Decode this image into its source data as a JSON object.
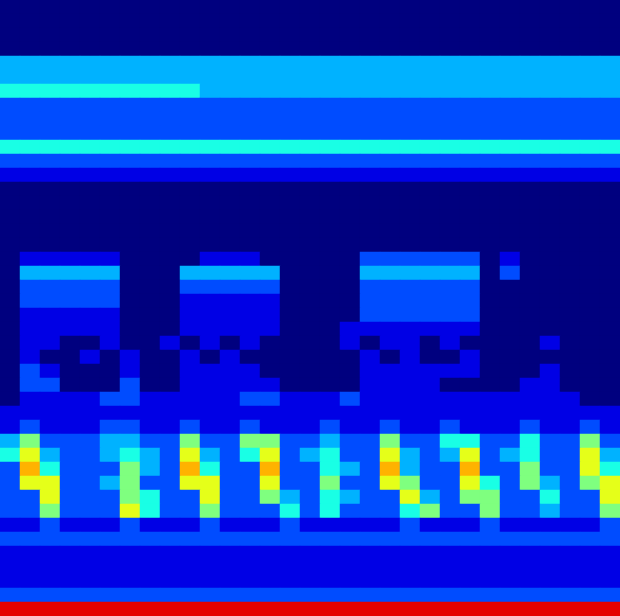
{
  "chart_data": {
    "type": "heatmap",
    "tick_labels": false,
    "color_range": [
      0,
      10
    ],
    "cells": [
      [
        0,
        0,
        0,
        0,
        0,
        0,
        0,
        0,
        0,
        0,
        0,
        0,
        0,
        0,
        0,
        0,
        0,
        0,
        0,
        0,
        0,
        0,
        0,
        0,
        0,
        0,
        0,
        0,
        0,
        0,
        0
      ],
      [
        0,
        0,
        0,
        0,
        0,
        0,
        0,
        0,
        0,
        0,
        0,
        0,
        0,
        0,
        0,
        0,
        0,
        0,
        0,
        0,
        0,
        0,
        0,
        0,
        0,
        0,
        0,
        0,
        0,
        0,
        0
      ],
      [
        0,
        0,
        0,
        0,
        0,
        0,
        0,
        0,
        0,
        0,
        0,
        0,
        0,
        0,
        0,
        0,
        0,
        0,
        0,
        0,
        0,
        0,
        0,
        0,
        0,
        0,
        0,
        0,
        0,
        0,
        0
      ],
      [
        0,
        0,
        0,
        0,
        0,
        0,
        0,
        0,
        0,
        0,
        0,
        0,
        0,
        0,
        0,
        0,
        0,
        0,
        0,
        0,
        0,
        0,
        0,
        0,
        0,
        0,
        0,
        0,
        0,
        0,
        0
      ],
      [
        3,
        3,
        3,
        3,
        3,
        3,
        3,
        3,
        3,
        3,
        3,
        3,
        3,
        3,
        3,
        3,
        3,
        3,
        3,
        3,
        3,
        3,
        3,
        3,
        3,
        3,
        3,
        3,
        3,
        3,
        3
      ],
      [
        3,
        3,
        3,
        3,
        3,
        3,
        3,
        3,
        3,
        3,
        3,
        3,
        3,
        3,
        3,
        3,
        3,
        3,
        3,
        3,
        3,
        3,
        3,
        3,
        3,
        3,
        3,
        3,
        3,
        3,
        3
      ],
      [
        4,
        4,
        4,
        4,
        4,
        4,
        4,
        4,
        4,
        4,
        3,
        3,
        3,
        3,
        3,
        3,
        3,
        3,
        3,
        3,
        3,
        3,
        3,
        3,
        3,
        3,
        3,
        3,
        3,
        3,
        3
      ],
      [
        2,
        2,
        2,
        2,
        2,
        2,
        2,
        2,
        2,
        2,
        2,
        2,
        2,
        2,
        2,
        2,
        2,
        2,
        2,
        2,
        2,
        2,
        2,
        2,
        2,
        2,
        2,
        2,
        2,
        2,
        2
      ],
      [
        2,
        2,
        2,
        2,
        2,
        2,
        2,
        2,
        2,
        2,
        2,
        2,
        2,
        2,
        2,
        2,
        2,
        2,
        2,
        2,
        2,
        2,
        2,
        2,
        2,
        2,
        2,
        2,
        2,
        2,
        2
      ],
      [
        2,
        2,
        2,
        2,
        2,
        2,
        2,
        2,
        2,
        2,
        2,
        2,
        2,
        2,
        2,
        2,
        2,
        2,
        2,
        2,
        2,
        2,
        2,
        2,
        2,
        2,
        2,
        2,
        2,
        2,
        2
      ],
      [
        4,
        4,
        4,
        4,
        4,
        4,
        4,
        4,
        4,
        4,
        4,
        4,
        4,
        4,
        4,
        4,
        4,
        4,
        4,
        4,
        4,
        4,
        4,
        4,
        4,
        4,
        4,
        4,
        4,
        4,
        4
      ],
      [
        2,
        2,
        2,
        2,
        2,
        2,
        2,
        2,
        2,
        2,
        2,
        2,
        2,
        2,
        2,
        2,
        2,
        2,
        2,
        2,
        2,
        2,
        2,
        2,
        2,
        2,
        2,
        2,
        2,
        2,
        2
      ],
      [
        1,
        1,
        1,
        1,
        1,
        1,
        1,
        1,
        1,
        1,
        1,
        1,
        1,
        1,
        1,
        1,
        1,
        1,
        1,
        1,
        1,
        1,
        1,
        1,
        1,
        1,
        1,
        1,
        1,
        1,
        1
      ],
      [
        0,
        0,
        0,
        0,
        0,
        0,
        0,
        0,
        0,
        0,
        0,
        0,
        0,
        0,
        0,
        0,
        0,
        0,
        0,
        0,
        0,
        0,
        0,
        0,
        0,
        0,
        0,
        0,
        0,
        0,
        0
      ],
      [
        0,
        0,
        0,
        0,
        0,
        0,
        0,
        0,
        0,
        0,
        0,
        0,
        0,
        0,
        0,
        0,
        0,
        0,
        0,
        0,
        0,
        0,
        0,
        0,
        0,
        0,
        0,
        0,
        0,
        0,
        0
      ],
      [
        0,
        0,
        0,
        0,
        0,
        0,
        0,
        0,
        0,
        0,
        0,
        0,
        0,
        0,
        0,
        0,
        0,
        0,
        0,
        0,
        0,
        0,
        0,
        0,
        0,
        0,
        0,
        0,
        0,
        0,
        0
      ],
      [
        0,
        0,
        0,
        0,
        0,
        0,
        0,
        0,
        0,
        0,
        0,
        0,
        0,
        0,
        0,
        0,
        0,
        0,
        0,
        0,
        0,
        0,
        0,
        0,
        0,
        0,
        0,
        0,
        0,
        0,
        0
      ],
      [
        0,
        0,
        0,
        0,
        0,
        0,
        0,
        0,
        0,
        0,
        0,
        0,
        0,
        0,
        0,
        0,
        0,
        0,
        0,
        0,
        0,
        0,
        0,
        0,
        0,
        0,
        0,
        0,
        0,
        0,
        0
      ],
      [
        0,
        1,
        1,
        1,
        1,
        1,
        0,
        0,
        0,
        0,
        1,
        1,
        1,
        0,
        0,
        0,
        0,
        0,
        2,
        2,
        2,
        2,
        2,
        2,
        0,
        1,
        0,
        0,
        0,
        0,
        0
      ],
      [
        0,
        3,
        3,
        3,
        3,
        3,
        0,
        0,
        0,
        3,
        3,
        3,
        3,
        3,
        0,
        0,
        0,
        0,
        3,
        3,
        3,
        3,
        3,
        3,
        0,
        2,
        0,
        0,
        0,
        0,
        0
      ],
      [
        0,
        2,
        2,
        2,
        2,
        2,
        0,
        0,
        0,
        2,
        2,
        2,
        2,
        2,
        0,
        0,
        0,
        0,
        2,
        2,
        2,
        2,
        2,
        2,
        0,
        0,
        0,
        0,
        0,
        0,
        0
      ],
      [
        0,
        2,
        2,
        2,
        2,
        2,
        0,
        0,
        0,
        1,
        1,
        1,
        1,
        1,
        0,
        0,
        0,
        0,
        2,
        2,
        2,
        2,
        2,
        2,
        0,
        0,
        0,
        0,
        0,
        0,
        0
      ],
      [
        0,
        1,
        1,
        1,
        1,
        1,
        0,
        0,
        0,
        1,
        1,
        1,
        1,
        1,
        0,
        0,
        0,
        0,
        2,
        2,
        2,
        2,
        2,
        2,
        0,
        0,
        0,
        0,
        0,
        0,
        0
      ],
      [
        0,
        1,
        1,
        1,
        1,
        1,
        0,
        0,
        0,
        1,
        1,
        1,
        1,
        1,
        0,
        0,
        0,
        1,
        1,
        1,
        1,
        1,
        1,
        1,
        0,
        0,
        0,
        0,
        0,
        0,
        0
      ],
      [
        0,
        1,
        1,
        0,
        0,
        1,
        0,
        0,
        1,
        0,
        1,
        0,
        1,
        0,
        0,
        0,
        0,
        1,
        0,
        1,
        1,
        0,
        1,
        0,
        0,
        0,
        0,
        1,
        0,
        0,
        0
      ],
      [
        0,
        1,
        0,
        0,
        1,
        0,
        1,
        0,
        0,
        1,
        0,
        1,
        0,
        0,
        0,
        0,
        0,
        0,
        1,
        0,
        1,
        0,
        0,
        1,
        0,
        0,
        0,
        0,
        0,
        0,
        0
      ],
      [
        0,
        2,
        1,
        0,
        0,
        0,
        1,
        0,
        0,
        1,
        1,
        1,
        1,
        0,
        0,
        0,
        0,
        0,
        1,
        1,
        1,
        1,
        1,
        1,
        0,
        0,
        0,
        1,
        0,
        0,
        0
      ],
      [
        0,
        2,
        2,
        0,
        0,
        0,
        2,
        0,
        0,
        1,
        1,
        1,
        1,
        1,
        0,
        0,
        0,
        0,
        1,
        1,
        1,
        1,
        0,
        0,
        0,
        0,
        1,
        1,
        0,
        0,
        0
      ],
      [
        0,
        1,
        1,
        1,
        1,
        2,
        2,
        1,
        1,
        1,
        1,
        1,
        2,
        2,
        1,
        1,
        1,
        2,
        1,
        1,
        1,
        1,
        1,
        1,
        1,
        1,
        1,
        1,
        1,
        0,
        0
      ],
      [
        1,
        1,
        1,
        1,
        1,
        1,
        1,
        1,
        1,
        1,
        1,
        1,
        1,
        1,
        1,
        1,
        1,
        1,
        1,
        1,
        1,
        1,
        1,
        1,
        1,
        1,
        1,
        1,
        1,
        1,
        1
      ],
      [
        1,
        2,
        1,
        1,
        1,
        2,
        2,
        1,
        1,
        2,
        1,
        1,
        2,
        1,
        1,
        1,
        2,
        1,
        1,
        2,
        1,
        1,
        2,
        1,
        1,
        1,
        2,
        1,
        1,
        2,
        1
      ],
      [
        3,
        5,
        2,
        2,
        2,
        3,
        3,
        2,
        2,
        5,
        2,
        2,
        5,
        5,
        2,
        2,
        3,
        2,
        2,
        5,
        2,
        2,
        4,
        4,
        2,
        2,
        4,
        2,
        2,
        5,
        2
      ],
      [
        4,
        6,
        3,
        2,
        2,
        3,
        4,
        3,
        2,
        6,
        3,
        2,
        4,
        6,
        2,
        3,
        4,
        2,
        2,
        6,
        3,
        2,
        3,
        6,
        2,
        3,
        4,
        2,
        2,
        6,
        3
      ],
      [
        2,
        7,
        4,
        2,
        2,
        2,
        5,
        3,
        2,
        7,
        4,
        2,
        2,
        7,
        2,
        2,
        4,
        3,
        2,
        7,
        3,
        2,
        2,
        7,
        2,
        2,
        5,
        2,
        2,
        6,
        4
      ],
      [
        2,
        6,
        6,
        2,
        2,
        3,
        5,
        2,
        2,
        6,
        6,
        2,
        2,
        6,
        2,
        2,
        5,
        2,
        2,
        6,
        5,
        2,
        2,
        6,
        4,
        2,
        5,
        3,
        2,
        5,
        6
      ],
      [
        2,
        2,
        6,
        2,
        2,
        2,
        5,
        4,
        2,
        2,
        6,
        2,
        2,
        5,
        3,
        2,
        4,
        3,
        2,
        2,
        6,
        3,
        2,
        5,
        5,
        2,
        2,
        4,
        2,
        2,
        6
      ],
      [
        2,
        2,
        5,
        2,
        2,
        2,
        6,
        4,
        2,
        2,
        5,
        2,
        2,
        2,
        4,
        2,
        4,
        2,
        2,
        2,
        4,
        5,
        2,
        2,
        5,
        2,
        2,
        3,
        2,
        2,
        5
      ],
      [
        1,
        1,
        2,
        1,
        1,
        1,
        2,
        1,
        1,
        1,
        2,
        1,
        1,
        1,
        2,
        1,
        1,
        1,
        1,
        1,
        2,
        1,
        1,
        1,
        2,
        1,
        1,
        1,
        1,
        1,
        2
      ],
      [
        2,
        2,
        2,
        2,
        2,
        2,
        2,
        2,
        2,
        2,
        2,
        2,
        2,
        2,
        2,
        2,
        2,
        2,
        2,
        2,
        2,
        2,
        2,
        2,
        2,
        2,
        2,
        2,
        2,
        2,
        2
      ],
      [
        1,
        1,
        1,
        1,
        1,
        1,
        1,
        1,
        1,
        1,
        1,
        1,
        1,
        1,
        1,
        1,
        1,
        1,
        1,
        1,
        1,
        1,
        1,
        1,
        1,
        1,
        1,
        1,
        1,
        1,
        1
      ],
      [
        1,
        1,
        1,
        1,
        1,
        1,
        1,
        1,
        1,
        1,
        1,
        1,
        1,
        1,
        1,
        1,
        1,
        1,
        1,
        1,
        1,
        1,
        1,
        1,
        1,
        1,
        1,
        1,
        1,
        1,
        1
      ],
      [
        1,
        1,
        1,
        1,
        1,
        1,
        1,
        1,
        1,
        1,
        1,
        1,
        1,
        1,
        1,
        1,
        1,
        1,
        1,
        1,
        1,
        1,
        1,
        1,
        1,
        1,
        1,
        1,
        1,
        1,
        1
      ],
      [
        2,
        2,
        2,
        2,
        2,
        2,
        2,
        2,
        2,
        2,
        2,
        2,
        2,
        2,
        2,
        2,
        2,
        2,
        2,
        2,
        2,
        2,
        2,
        2,
        2,
        2,
        2,
        2,
        2,
        2,
        2
      ],
      [
        9,
        9,
        9,
        9,
        9,
        9,
        9,
        9,
        9,
        9,
        9,
        9,
        9,
        9,
        9,
        9,
        9,
        9,
        9,
        9,
        9,
        9,
        9,
        9,
        9,
        9,
        9,
        9,
        9,
        9,
        9
      ]
    ]
  }
}
